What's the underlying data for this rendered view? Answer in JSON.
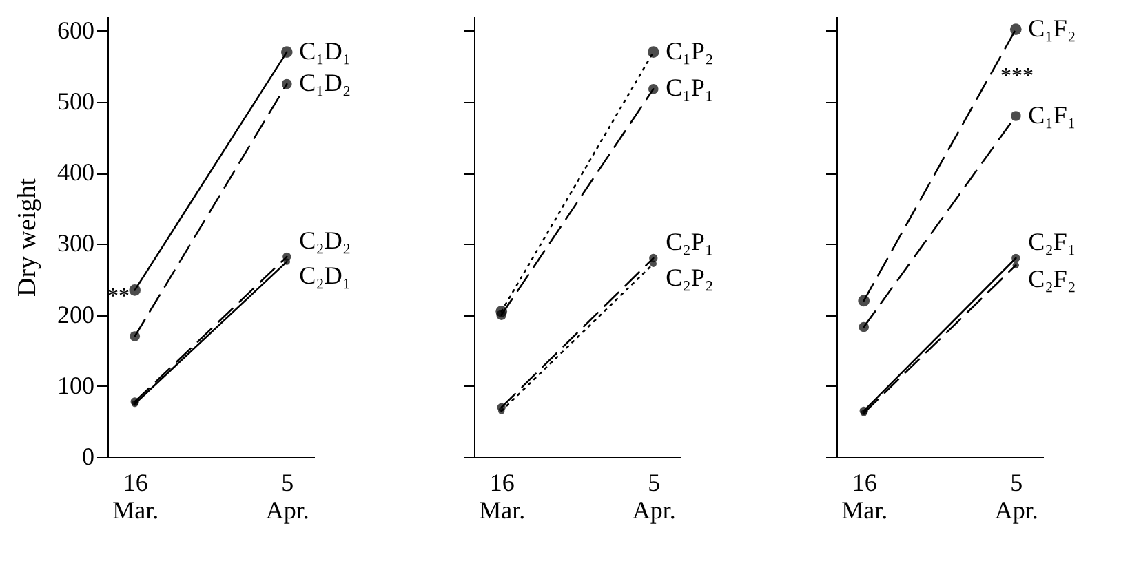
{
  "chart_data": [
    {
      "type": "line",
      "ylabel": "Dry weight",
      "categories": [
        "16 Mar.",
        "5 Apr."
      ],
      "ylim": [
        0,
        620
      ],
      "yticks": [
        0,
        100,
        200,
        300,
        400,
        500,
        600
      ],
      "grid": false,
      "marker": "circle",
      "series": [
        {
          "name": "C₁D₁",
          "color": "#000000",
          "line_style": "solid",
          "values": [
            235,
            570
          ]
        },
        {
          "name": "C₁D₂",
          "color": "#000000",
          "line_style": "dashed",
          "values": [
            170,
            525
          ]
        },
        {
          "name": "C₂D₂",
          "color": "#000000",
          "line_style": "dashed",
          "values": [
            78,
            282
          ]
        },
        {
          "name": "C₂D₁",
          "color": "#000000",
          "line_style": "solid",
          "values": [
            75,
            275
          ]
        }
      ],
      "annotations": [
        "**"
      ]
    },
    {
      "type": "line",
      "categories": [
        "16 Mar.",
        "5 Apr."
      ],
      "ylim": [
        0,
        620
      ],
      "yticks": [
        0,
        100,
        200,
        300,
        400,
        500,
        600
      ],
      "grid": false,
      "marker": "circle",
      "tick_labels": "x",
      "series": [
        {
          "name": "C₁P₂",
          "color": "#000000",
          "line_style": "dotted",
          "values": [
            205,
            570
          ]
        },
        {
          "name": "C₁P₁",
          "color": "#000000",
          "line_style": "dashed",
          "values": [
            200,
            518
          ]
        },
        {
          "name": "C₂P₁",
          "color": "#000000",
          "line_style": "dashed",
          "values": [
            70,
            280
          ]
        },
        {
          "name": "C₂P₂",
          "color": "#000000",
          "line_style": "dotted",
          "values": [
            65,
            272
          ]
        }
      ]
    },
    {
      "type": "line",
      "categories": [
        "16 Mar.",
        "5 Apr."
      ],
      "ylim": [
        0,
        620
      ],
      "yticks": [
        0,
        100,
        200,
        300,
        400,
        500,
        600
      ],
      "grid": false,
      "marker": "circle",
      "tick_labels": "x",
      "series": [
        {
          "name": "C₁F₂",
          "color": "#000000",
          "line_style": "dashed",
          "values": [
            220,
            602
          ]
        },
        {
          "name": "C₁F₁",
          "color": "#000000",
          "line_style": "dashed",
          "values": [
            183,
            480
          ]
        },
        {
          "name": "C₂F₁",
          "color": "#000000",
          "line_style": "solid",
          "values": [
            65,
            280
          ]
        },
        {
          "name": "C₂F₂",
          "color": "#000000",
          "line_style": "dashed",
          "values": [
            62,
            270
          ]
        }
      ],
      "annotations": [
        "***"
      ]
    }
  ]
}
